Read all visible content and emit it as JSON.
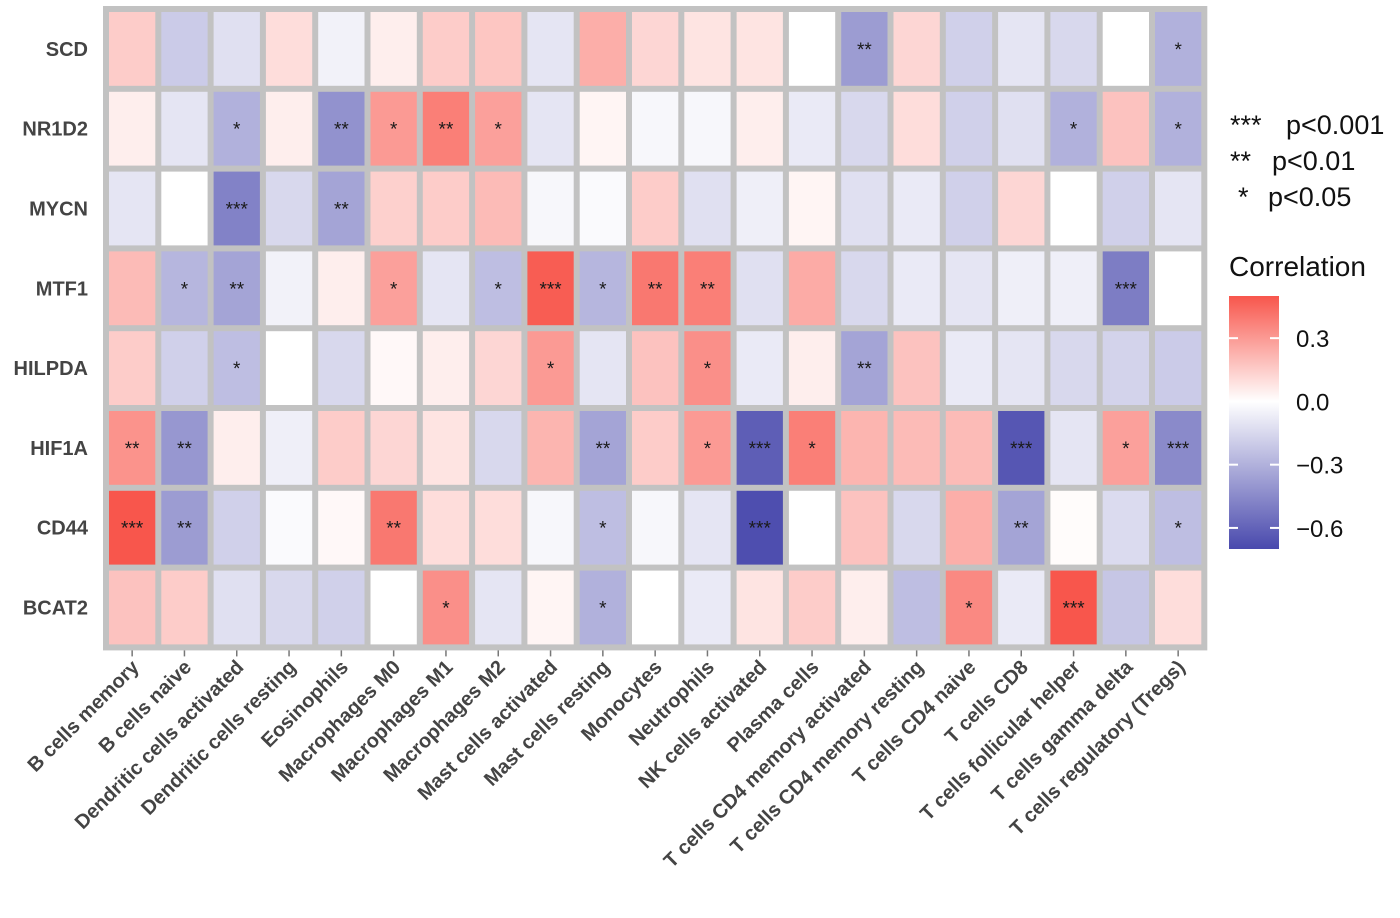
{
  "chart_data": {
    "type": "heatmap",
    "title": "",
    "xlabel": "",
    "ylabel": "",
    "rows": [
      "SCD",
      "NR1D2",
      "MYCN",
      "MTF1",
      "HILPDA",
      "HIF1A",
      "CD44",
      "BCAT2"
    ],
    "columns": [
      "B cells memory",
      "B cells naive",
      "Dendritic cells activated",
      "Dendritic cells resting",
      "Eosinophils",
      "Macrophages M0",
      "Macrophages M1",
      "Macrophages M2",
      "Mast cells activated",
      "Mast cells resting",
      "Monocytes",
      "Neutrophils",
      "NK cells activated",
      "Plasma cells",
      "T cells CD4 memory activated",
      "T cells CD4 memory resting",
      "T cells CD4 naive",
      "T cells CD8",
      "T cells follicular helper",
      "T cells gamma delta",
      "T cells regulatory (Tregs)"
    ],
    "values": [
      [
        0.15,
        -0.2,
        -0.12,
        0.1,
        -0.05,
        0.05,
        0.15,
        0.17,
        -0.1,
        0.24,
        0.12,
        0.08,
        0.08,
        0.0,
        -0.38,
        0.12,
        -0.18,
        -0.1,
        -0.15,
        0.0,
        -0.3
      ],
      [
        0.05,
        -0.1,
        -0.3,
        0.05,
        -0.42,
        0.3,
        0.38,
        0.28,
        -0.1,
        0.03,
        -0.03,
        -0.03,
        0.05,
        -0.08,
        -0.15,
        0.1,
        -0.18,
        -0.12,
        -0.3,
        0.18,
        -0.3
      ],
      [
        -0.1,
        0.0,
        -0.48,
        -0.15,
        -0.35,
        0.14,
        0.15,
        0.2,
        -0.03,
        -0.02,
        0.15,
        -0.12,
        -0.06,
        0.03,
        -0.12,
        -0.08,
        -0.18,
        0.12,
        0.0,
        -0.18,
        -0.1
      ],
      [
        0.2,
        -0.28,
        -0.35,
        -0.05,
        0.05,
        0.28,
        -0.1,
        -0.25,
        0.48,
        -0.28,
        0.4,
        0.38,
        -0.12,
        0.25,
        -0.15,
        -0.08,
        -0.1,
        -0.06,
        -0.06,
        -0.5,
        0.0
      ],
      [
        0.15,
        -0.18,
        -0.25,
        0.0,
        -0.15,
        0.02,
        0.05,
        0.12,
        0.3,
        -0.1,
        0.18,
        0.33,
        -0.08,
        0.05,
        -0.35,
        0.18,
        -0.08,
        -0.1,
        -0.15,
        -0.17,
        -0.2
      ],
      [
        0.32,
        -0.4,
        0.05,
        -0.06,
        0.15,
        0.12,
        0.08,
        -0.15,
        0.22,
        -0.35,
        0.15,
        0.3,
        -0.62,
        0.38,
        0.22,
        0.2,
        0.2,
        -0.65,
        -0.1,
        0.28,
        -0.45
      ],
      [
        0.52,
        -0.38,
        -0.18,
        -0.02,
        0.02,
        0.4,
        0.1,
        0.1,
        -0.03,
        -0.25,
        -0.03,
        -0.1,
        -0.68,
        0.0,
        0.18,
        -0.15,
        0.24,
        -0.35,
        0.01,
        -0.14,
        -0.25
      ],
      [
        0.18,
        0.15,
        -0.12,
        -0.15,
        -0.18,
        0.0,
        0.33,
        -0.1,
        0.03,
        -0.3,
        0.0,
        -0.08,
        0.08,
        0.15,
        0.05,
        -0.25,
        0.35,
        -0.08,
        0.55,
        -0.22,
        0.1
      ]
    ],
    "significance": [
      [
        "",
        "",
        "",
        "",
        "",
        "",
        "",
        "",
        "",
        "",
        "",
        "",
        "",
        "",
        "**",
        "",
        "",
        "",
        "",
        "",
        "*"
      ],
      [
        "",
        "",
        "*",
        "",
        "**",
        "*",
        "**",
        "*",
        "",
        "",
        "",
        "",
        "",
        "",
        "",
        "",
        "",
        "",
        "*",
        "",
        "*"
      ],
      [
        "",
        "",
        "***",
        "",
        "**",
        "",
        "",
        "",
        "",
        "",
        "",
        "",
        "",
        "",
        "",
        "",
        "",
        "",
        "",
        "",
        ""
      ],
      [
        "",
        "*",
        "**",
        "",
        "",
        "*",
        "",
        "*",
        "***",
        "*",
        "**",
        "**",
        "",
        "",
        "",
        "",
        "",
        "",
        "",
        "***",
        ""
      ],
      [
        "",
        "",
        "*",
        "",
        "",
        "",
        "",
        "",
        "*",
        "",
        "",
        "*",
        "",
        "",
        "**",
        "",
        "",
        "",
        "",
        "",
        ""
      ],
      [
        "**",
        "**",
        "",
        "",
        "",
        "",
        "",
        "",
        "",
        "**",
        "",
        "*",
        "***",
        "*",
        "",
        "",
        "",
        "***",
        "",
        "*",
        "***"
      ],
      [
        "***",
        "**",
        "",
        "",
        "",
        "**",
        "",
        "",
        "",
        "*",
        "",
        "",
        "***",
        "",
        "",
        "",
        "",
        "**",
        "",
        "",
        "*"
      ],
      [
        "",
        "",
        "",
        "",
        "",
        "",
        "*",
        "",
        "",
        "*",
        "",
        "",
        "",
        "",
        "",
        "",
        "*",
        "",
        "***",
        "",
        ""
      ]
    ],
    "legend": {
      "title": "Correlation",
      "ticks": [
        {
          "value": 0.3,
          "label": "0.3"
        },
        {
          "value": 0.0,
          "label": "0.0"
        },
        {
          "value": -0.3,
          "label": "−0.3"
        },
        {
          "value": -0.6,
          "label": "−0.6"
        }
      ],
      "range": [
        -0.7,
        0.5
      ],
      "placement": "right"
    },
    "significance_key": [
      {
        "stars": "***",
        "label": "p<0.001"
      },
      {
        "stars": "**",
        "label": "p<0.01"
      },
      {
        "stars": "*",
        "label": "p<0.05"
      }
    ],
    "colors": {
      "high": "#f8564c",
      "mid": "#ffffff",
      "low": "#4949ad",
      "cell_border": "#c2c2c2",
      "panel_border": "#bdbdbd",
      "label": "#444444"
    }
  }
}
